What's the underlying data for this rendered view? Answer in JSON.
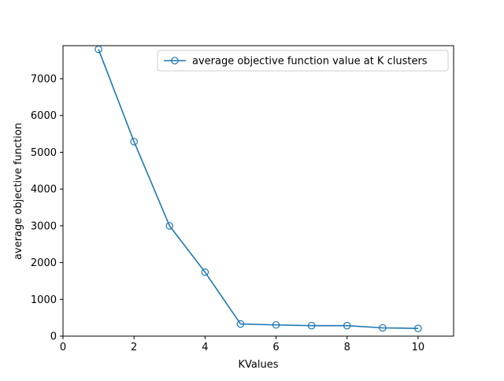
{
  "chart_data": {
    "type": "line",
    "title": "",
    "xlabel": "KValues",
    "ylabel": "average objective function",
    "xlim": [
      0,
      11
    ],
    "ylim": [
      0,
      7900
    ],
    "xticks": [
      0,
      2,
      4,
      6,
      8,
      10
    ],
    "yticks": [
      0,
      1000,
      2000,
      3000,
      4000,
      5000,
      6000,
      7000
    ],
    "grid": false,
    "legend_position": "top-right",
    "series": [
      {
        "name": "average objective function value at K clusters",
        "color": "#1f77b4",
        "marker": "hollow-circle",
        "x": [
          1,
          2,
          3,
          4,
          5,
          6,
          7,
          8,
          9,
          10
        ],
        "y": [
          7800,
          5290,
          3000,
          1740,
          330,
          305,
          285,
          285,
          225,
          210
        ]
      }
    ]
  }
}
